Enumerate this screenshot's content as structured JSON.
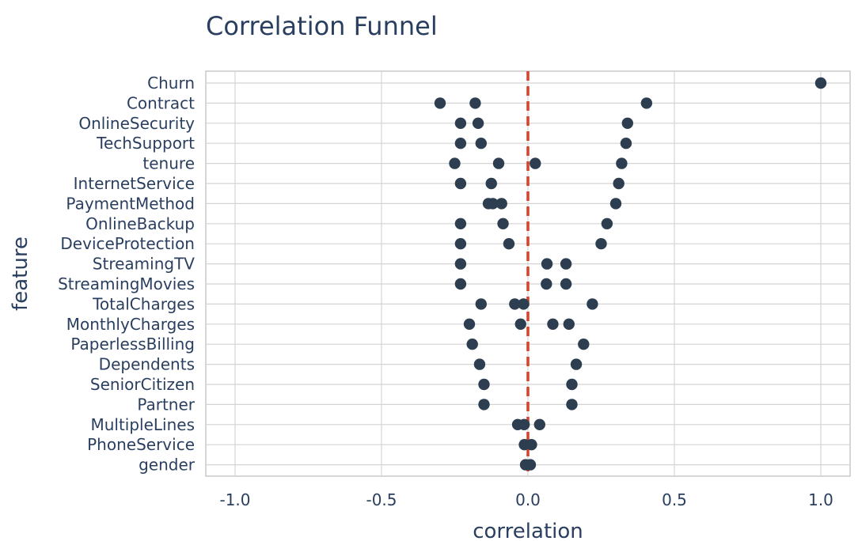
{
  "chart_data": {
    "type": "scatter",
    "title": "Correlation Funnel",
    "xlabel": "correlation",
    "ylabel": "feature",
    "xlim": [
      -1.1,
      1.1
    ],
    "xticks": [
      -1.0,
      -0.5,
      0.0,
      0.5,
      1.0
    ],
    "xtick_labels": [
      "-1.0",
      "-0.5",
      "0.0",
      "0.5",
      "1.0"
    ],
    "grid": true,
    "reference_line": {
      "x": 0,
      "style": "dashed",
      "color": "#d9412b"
    },
    "point_color": "#2c3e50",
    "features": [
      "Churn",
      "Contract",
      "OnlineSecurity",
      "TechSupport",
      "tenure",
      "InternetService",
      "PaymentMethod",
      "OnlineBackup",
      "DeviceProtection",
      "StreamingTV",
      "StreamingMovies",
      "TotalCharges",
      "MonthlyCharges",
      "PaperlessBilling",
      "Dependents",
      "SeniorCitizen",
      "Partner",
      "MultipleLines",
      "PhoneService",
      "gender"
    ],
    "points": [
      {
        "feature": "Churn",
        "values": [
          1.0
        ]
      },
      {
        "feature": "Contract",
        "values": [
          -0.3,
          -0.18,
          0.405
        ]
      },
      {
        "feature": "OnlineSecurity",
        "values": [
          -0.23,
          -0.17,
          0.34
        ]
      },
      {
        "feature": "TechSupport",
        "values": [
          -0.23,
          -0.16,
          0.335
        ]
      },
      {
        "feature": "tenure",
        "values": [
          -0.25,
          -0.1,
          0.025,
          0.32
        ]
      },
      {
        "feature": "InternetService",
        "values": [
          -0.23,
          -0.125,
          0.31
        ]
      },
      {
        "feature": "PaymentMethod",
        "values": [
          -0.135,
          -0.12,
          -0.09,
          0.3
        ]
      },
      {
        "feature": "OnlineBackup",
        "values": [
          -0.23,
          -0.085,
          0.27
        ]
      },
      {
        "feature": "DeviceProtection",
        "values": [
          -0.23,
          -0.065,
          0.25
        ]
      },
      {
        "feature": "StreamingTV",
        "values": [
          -0.23,
          0.065,
          0.13
        ]
      },
      {
        "feature": "StreamingMovies",
        "values": [
          -0.23,
          0.063,
          0.13
        ]
      },
      {
        "feature": "TotalCharges",
        "values": [
          -0.16,
          -0.045,
          -0.015,
          0.22
        ]
      },
      {
        "feature": "MonthlyCharges",
        "values": [
          -0.2,
          -0.025,
          0.085,
          0.14
        ]
      },
      {
        "feature": "PaperlessBilling",
        "values": [
          -0.19,
          0.19
        ]
      },
      {
        "feature": "Dependents",
        "values": [
          -0.165,
          0.165
        ]
      },
      {
        "feature": "SeniorCitizen",
        "values": [
          -0.15,
          0.15
        ]
      },
      {
        "feature": "Partner",
        "values": [
          -0.15,
          0.15
        ]
      },
      {
        "feature": "MultipleLines",
        "values": [
          -0.035,
          -0.013,
          0.04
        ]
      },
      {
        "feature": "PhoneService",
        "values": [
          -0.012,
          0.012
        ]
      },
      {
        "feature": "gender",
        "values": [
          -0.008,
          0.008
        ]
      }
    ]
  }
}
